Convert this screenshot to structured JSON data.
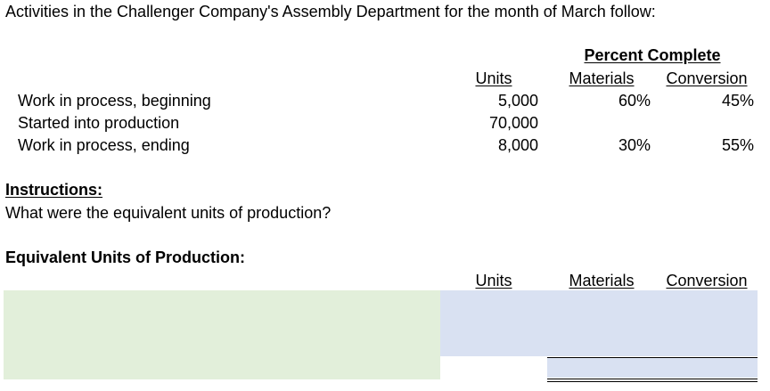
{
  "intro": "Activities in the Challenger Company's Assembly Department for the month of March follow:",
  "table": {
    "percent_complete_header": "Percent Complete",
    "col_units": "Units",
    "col_materials": "Materials",
    "col_conversion": "Conversion",
    "rows": [
      {
        "label": "Work in process, beginning",
        "units": "5,000",
        "materials": "60%",
        "conversion": "45%"
      },
      {
        "label": "Started into production",
        "units": "70,000",
        "materials": "",
        "conversion": ""
      },
      {
        "label": "Work in process, ending",
        "units": "8,000",
        "materials": "30%",
        "conversion": "55%"
      }
    ]
  },
  "instructions": {
    "heading": "Instructions:",
    "question": "What were the equivalent units of production?"
  },
  "answer": {
    "heading": "Equivalent Units of Production:",
    "col_units": "Units",
    "col_materials": "Materials",
    "col_conversion": "Conversion"
  },
  "colors": {
    "input_label_area": "#e2efda",
    "input_value_area": "#d9e1f2"
  }
}
